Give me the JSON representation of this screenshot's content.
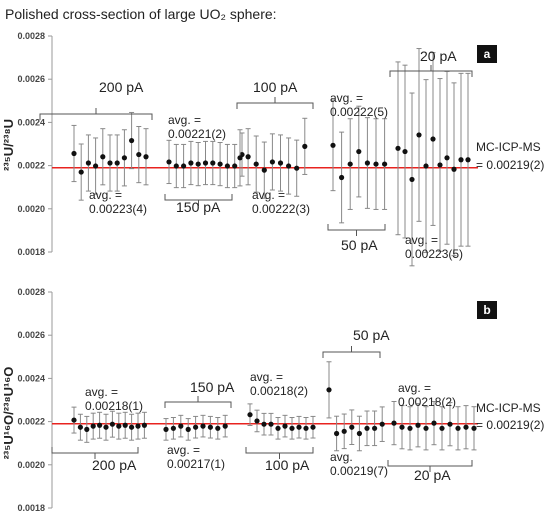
{
  "title": "Polished cross-section of large UO₂ sphere:",
  "colors": {
    "reference_line": "#e8231f",
    "points": "#111111",
    "whiskers": "#888888"
  },
  "chart_data": [
    {
      "type": "scatter",
      "panel_label": "a",
      "ylabel": "²³⁵U/²³⁸U",
      "ylim": [
        0.0018,
        0.0028
      ],
      "y_ticks": [
        "0.0018",
        "0.0020",
        "0.0022",
        "0.0024",
        "0.0026",
        "0.0028"
      ],
      "reference_value": 0.00219,
      "reference_label": [
        "MC-ICP-MS",
        "= 0.00219(2)"
      ],
      "groups": [
        {
          "current": "200 pA",
          "avg_label": [
            "avg. =",
            "0.00223(4)"
          ],
          "values": [
            0.002256,
            0.00217,
            0.002212,
            0.002198,
            0.002241,
            0.002212,
            0.002212,
            0.002236,
            0.002316,
            0.002251,
            0.002241
          ],
          "errors": [
            0.00013,
            0.00013,
            0.00013,
            0.00013,
            0.00013,
            0.00013,
            0.00013,
            0.00013,
            0.00013,
            0.00013,
            0.00013
          ]
        },
        {
          "current": "150 pA",
          "avg_label": [
            "avg. =",
            "0.00221(2)"
          ],
          "values": [
            0.002217,
            0.002198,
            0.002198,
            0.002212,
            0.002207,
            0.002212,
            0.002212,
            0.002207,
            0.002198,
            0.002198,
            0.002251
          ],
          "errors": [
            0.0001,
            0.0001,
            0.0001,
            0.0001,
            0.0001,
            0.0001,
            0.0001,
            0.0001,
            0.0001,
            0.0001,
            0.0001
          ]
        },
        {
          "current": "100 pA",
          "avg_label": [
            "avg. =",
            "0.00222(3)"
          ],
          "values": [
            0.002236,
            0.002241,
            0.002207,
            0.002179,
            0.002217,
            0.002212,
            0.002198,
            0.002188,
            0.002289
          ],
          "errors": [
            0.00013,
            0.00013,
            0.00013,
            0.00013,
            0.00013,
            0.00013,
            0.00013,
            0.00013,
            0.00013
          ]
        },
        {
          "current": "50 pA",
          "avg_label": [
            "avg. =",
            "0.00222(5)"
          ],
          "values": [
            0.002294,
            0.002145,
            0.002207,
            0.002265,
            0.002212,
            0.002207,
            0.002207
          ],
          "errors": [
            0.00021,
            0.00021,
            0.00021,
            0.00021,
            0.00021,
            0.00021,
            0.00021
          ]
        },
        {
          "current": "20 pA",
          "avg_label": [
            "avg. =",
            "0.00223(5)"
          ],
          "values": [
            0.00228,
            0.002265,
            0.002136,
            0.002342,
            0.002198,
            0.002323,
            0.002203,
            0.002236,
            0.002183,
            0.002227,
            0.002227
          ],
          "errors": [
            0.0004,
            0.0004,
            0.0004,
            0.0004,
            0.0004,
            0.0004,
            0.0004,
            0.0004,
            0.0004,
            0.0004,
            0.0004
          ]
        }
      ]
    },
    {
      "type": "scatter",
      "panel_label": "b",
      "ylabel": "²³⁵U¹⁶O/²³⁸U¹⁶O",
      "ylim": [
        0.0018,
        0.0028
      ],
      "y_ticks": [
        "0.0018",
        "0.0020",
        "0.0022",
        "0.0024",
        "0.0026",
        "0.0028"
      ],
      "reference_value": 0.00219,
      "reference_label": [
        "MC-ICP-MS",
        "= 0.00219(2)"
      ],
      "groups": [
        {
          "current": "200 pA",
          "avg_label": [
            "avg. =",
            "0.00218(1)"
          ],
          "values": [
            0.002207,
            0.002174,
            0.002164,
            0.002179,
            0.002183,
            0.002174,
            0.002188,
            0.002179,
            0.002183,
            0.002174,
            0.002179,
            0.002183
          ],
          "errors": [
            6e-05,
            6e-05,
            6e-05,
            6e-05,
            6e-05,
            6e-05,
            6e-05,
            6e-05,
            6e-05,
            6e-05,
            6e-05,
            6e-05
          ]
        },
        {
          "current": "150 pA",
          "avg_label": [
            "avg. =",
            "0.00217(1)"
          ],
          "values": [
            0.002164,
            0.002169,
            0.002179,
            0.002164,
            0.002174,
            0.002179,
            0.002174,
            0.002169,
            0.002179
          ],
          "errors": [
            5e-05,
            5e-05,
            5e-05,
            5e-05,
            5e-05,
            5e-05,
            5e-05,
            5e-05,
            5e-05
          ]
        },
        {
          "current": "100 pA",
          "avg_label": [
            "avg. =",
            "0.00218(2)"
          ],
          "values": [
            0.002232,
            0.002203,
            0.002188,
            0.002188,
            0.002169,
            0.002179,
            0.002169,
            0.002174,
            0.002169,
            0.002174
          ],
          "errors": [
            5e-05,
            5e-05,
            5e-05,
            5e-05,
            5e-05,
            5e-05,
            5e-05,
            5e-05,
            5e-05,
            5e-05
          ]
        },
        {
          "current": "50 pA",
          "avg_label": [
            "avg.",
            "0.00219(7)"
          ],
          "values": [
            0.002347,
            0.002145,
            0.002155,
            0.002174,
            0.002145,
            0.002169,
            0.002169,
            0.002188
          ],
          "errors": [
            0.00013,
            8e-05,
            8e-05,
            8e-05,
            8e-05,
            8e-05,
            8e-05,
            8e-05
          ]
        },
        {
          "current": "20 pA",
          "avg_label": [
            "avg. =",
            "0.00218(2)"
          ],
          "values": [
            0.002193,
            0.002174,
            0.002169,
            0.002183,
            0.002169,
            0.002193,
            0.002169,
            0.002188,
            0.002169,
            0.002174,
            0.002169
          ],
          "errors": [
            0.0001,
            0.0001,
            0.0001,
            0.0001,
            0.0001,
            0.0001,
            0.0001,
            0.0001,
            0.0001,
            0.0001,
            0.0001
          ]
        }
      ]
    }
  ]
}
